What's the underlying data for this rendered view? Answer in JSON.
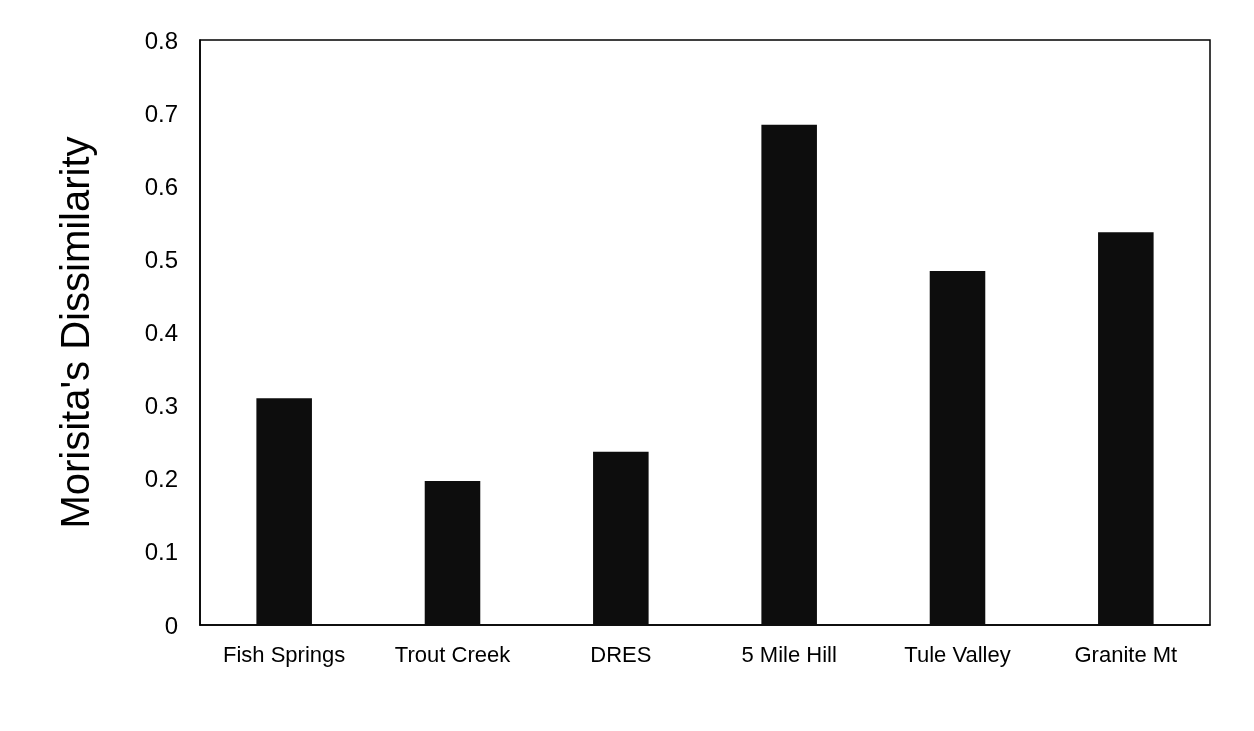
{
  "chart_data": {
    "type": "bar",
    "ylabel": "Morisita's Dissimilarity",
    "categories": [
      "Fish Springs",
      "Trout Creek",
      "DRES",
      "5 Mile Hill",
      "Tule Valley",
      "Granite Mt"
    ],
    "values": [
      0.31,
      0.197,
      0.237,
      0.684,
      0.484,
      0.537
    ],
    "color": "#0d0d0d",
    "ylim": [
      0,
      0.8
    ],
    "yticks": [
      0,
      0.1,
      0.2,
      0.3,
      0.4,
      0.5,
      0.6,
      0.7,
      0.8
    ],
    "grid": false
  }
}
